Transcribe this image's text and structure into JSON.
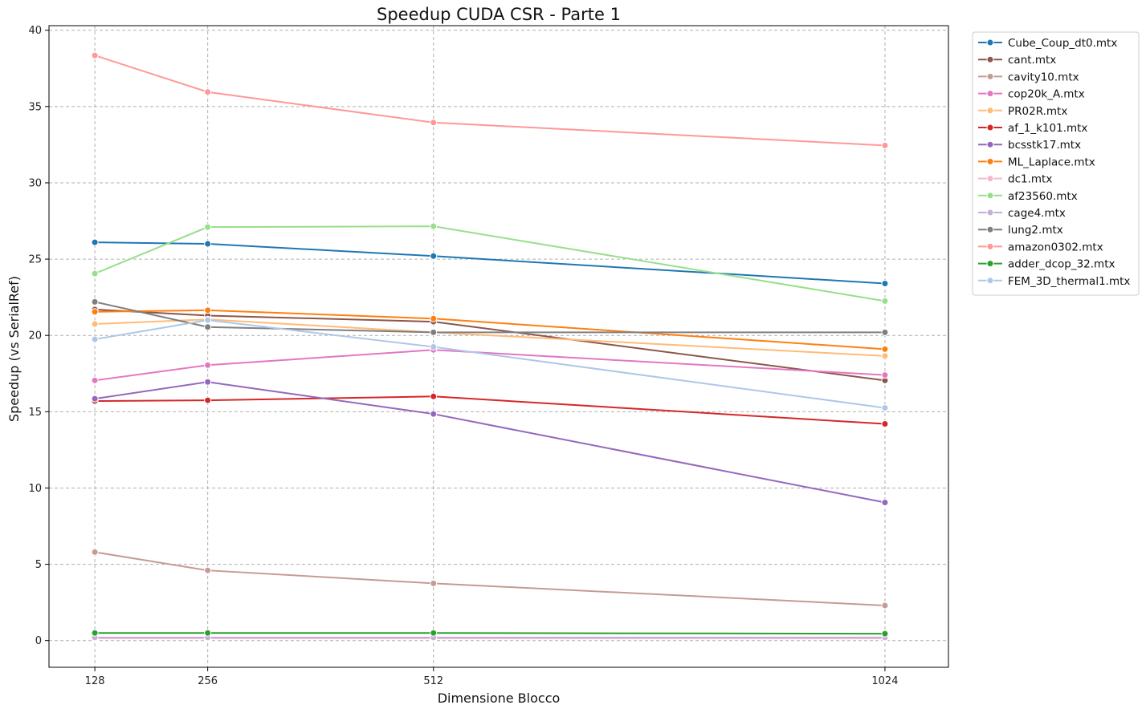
{
  "chart_data": {
    "type": "line",
    "title": "Speedup CUDA CSR - Parte 1",
    "xlabel": "Dimensione Blocco",
    "ylabel": "Speedup (vs SerialRef)",
    "x": [
      128,
      256,
      512,
      1024
    ],
    "x_ticks": [
      128,
      256,
      512,
      1024
    ],
    "y_ticks": [
      0,
      5,
      10,
      15,
      20,
      25,
      30,
      35,
      40
    ],
    "xlim": [
      76,
      1096
    ],
    "ylim": [
      -1.75,
      40.3
    ],
    "grid": true,
    "legend_position": "outside-top-right",
    "series": [
      {
        "name": "Cube_Coup_dt0.mtx",
        "color": "#1f77b4",
        "values": [
          26.1,
          26.0,
          25.2,
          23.4
        ]
      },
      {
        "name": "cant.mtx",
        "color": "#8c564b",
        "values": [
          21.7,
          21.3,
          20.9,
          17.05
        ]
      },
      {
        "name": "cavity10.mtx",
        "color": "#c49c94",
        "values": [
          5.8,
          4.6,
          3.75,
          2.3
        ]
      },
      {
        "name": "cop20k_A.mtx",
        "color": "#e377c2",
        "values": [
          17.05,
          18.05,
          19.05,
          17.4
        ]
      },
      {
        "name": "PR02R.mtx",
        "color": "#ffbb78",
        "values": [
          20.75,
          21.05,
          20.2,
          18.65
        ]
      },
      {
        "name": "af_1_k101.mtx",
        "color": "#d62728",
        "values": [
          15.7,
          15.75,
          16.0,
          14.2
        ]
      },
      {
        "name": "bcsstk17.mtx",
        "color": "#9467bd",
        "values": [
          15.85,
          16.95,
          14.85,
          9.05
        ]
      },
      {
        "name": "ML_Laplace.mtx",
        "color": "#ff7f0e",
        "values": [
          21.55,
          21.65,
          21.1,
          19.1
        ]
      },
      {
        "name": "dc1.mtx",
        "color": "#f7b6d2",
        "values": [
          0.15,
          0.15,
          0.15,
          0.15
        ]
      },
      {
        "name": "af23560.mtx",
        "color": "#98df8a",
        "values": [
          24.05,
          27.1,
          27.15,
          22.25
        ]
      },
      {
        "name": "cage4.mtx",
        "color": "#c5b0d5",
        "values": [
          0.2,
          0.2,
          0.2,
          0.2
        ]
      },
      {
        "name": "lung2.mtx",
        "color": "#7f7f7f",
        "values": [
          22.2,
          20.55,
          20.2,
          20.2
        ]
      },
      {
        "name": "amazon0302.mtx",
        "color": "#ff9896",
        "values": [
          38.35,
          35.95,
          33.95,
          32.45
        ]
      },
      {
        "name": "adder_dcop_32.mtx",
        "color": "#2ca02c",
        "values": [
          0.5,
          0.5,
          0.5,
          0.45
        ]
      },
      {
        "name": "FEM_3D_thermal1.mtx",
        "color": "#aec7e8",
        "values": [
          19.75,
          21.0,
          19.25,
          15.25
        ]
      }
    ]
  }
}
